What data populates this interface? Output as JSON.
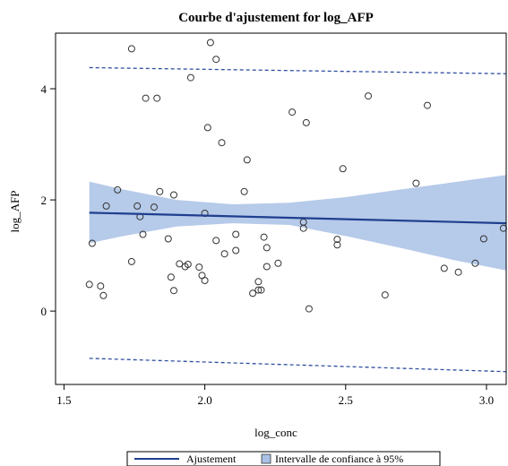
{
  "chart_data": {
    "type": "scatter",
    "title": "Courbe d'ajustement for log_AFP",
    "xlabel": "log_conc",
    "ylabel": "log_AFP",
    "xlim": [
      1.47,
      3.07
    ],
    "ylim": [
      -1.32,
      5.0
    ],
    "x_ticks": [
      1.5,
      2.0,
      2.5,
      3.0
    ],
    "x_tick_labels": [
      "1.5",
      "2.0",
      "2.5",
      "3.0"
    ],
    "y_ticks": [
      0,
      2,
      4
    ],
    "y_tick_labels": [
      "0",
      "2",
      "4"
    ],
    "grid": false,
    "legend_position": "bottom",
    "legend": [
      "Ajustement",
      "Intervalle de confiance à 95%"
    ],
    "colors": {
      "fit_line": "#1f3f8f",
      "ci_band": "#a9c1e5",
      "prediction_line": "#2f4f9f",
      "point_stroke": "#333333"
    },
    "fit_line": {
      "x": [
        1.59,
        3.07
      ],
      "y": [
        1.77,
        1.58
      ]
    },
    "confidence_band": {
      "x": [
        1.59,
        1.7,
        1.9,
        2.1,
        2.3,
        2.5,
        2.7,
        2.9,
        3.07
      ],
      "upper": [
        2.33,
        2.2,
        2.0,
        1.92,
        1.95,
        2.05,
        2.19,
        2.33,
        2.45
      ],
      "lower": [
        1.22,
        1.34,
        1.52,
        1.58,
        1.55,
        1.35,
        1.13,
        0.9,
        0.73
      ]
    },
    "prediction_upper": {
      "x": [
        1.59,
        3.07
      ],
      "y": [
        4.38,
        4.27
      ]
    },
    "prediction_lower": {
      "x": [
        1.59,
        3.07
      ],
      "y": [
        -0.85,
        -1.09
      ]
    },
    "points": [
      {
        "x": 1.59,
        "y": 0.48
      },
      {
        "x": 1.6,
        "y": 1.22
      },
      {
        "x": 1.63,
        "y": 0.45
      },
      {
        "x": 1.64,
        "y": 0.28
      },
      {
        "x": 1.65,
        "y": 1.89
      },
      {
        "x": 1.69,
        "y": 2.18
      },
      {
        "x": 1.74,
        "y": 0.89
      },
      {
        "x": 1.74,
        "y": 4.72
      },
      {
        "x": 1.76,
        "y": 1.89
      },
      {
        "x": 1.77,
        "y": 1.7
      },
      {
        "x": 1.78,
        "y": 1.38
      },
      {
        "x": 1.79,
        "y": 3.83
      },
      {
        "x": 1.82,
        "y": 1.87
      },
      {
        "x": 1.83,
        "y": 3.83
      },
      {
        "x": 1.84,
        "y": 2.15
      },
      {
        "x": 1.87,
        "y": 1.3
      },
      {
        "x": 1.88,
        "y": 0.61
      },
      {
        "x": 1.89,
        "y": 2.09
      },
      {
        "x": 1.89,
        "y": 0.37
      },
      {
        "x": 1.91,
        "y": 0.85
      },
      {
        "x": 1.93,
        "y": 0.8
      },
      {
        "x": 1.94,
        "y": 0.84
      },
      {
        "x": 1.95,
        "y": 4.2
      },
      {
        "x": 1.98,
        "y": 0.79
      },
      {
        "x": 1.99,
        "y": 0.64
      },
      {
        "x": 2.0,
        "y": 1.76
      },
      {
        "x": 2.0,
        "y": 0.55
      },
      {
        "x": 2.01,
        "y": 3.3
      },
      {
        "x": 2.02,
        "y": 4.83
      },
      {
        "x": 2.04,
        "y": 4.53
      },
      {
        "x": 2.04,
        "y": 1.27
      },
      {
        "x": 2.06,
        "y": 3.03
      },
      {
        "x": 2.07,
        "y": 1.03
      },
      {
        "x": 2.11,
        "y": 1.09
      },
      {
        "x": 2.11,
        "y": 1.38
      },
      {
        "x": 2.14,
        "y": 2.15
      },
      {
        "x": 2.15,
        "y": 2.72
      },
      {
        "x": 2.17,
        "y": 0.32
      },
      {
        "x": 2.19,
        "y": 0.53
      },
      {
        "x": 2.19,
        "y": 0.38
      },
      {
        "x": 2.2,
        "y": 0.38
      },
      {
        "x": 2.21,
        "y": 1.33
      },
      {
        "x": 2.22,
        "y": 1.14
      },
      {
        "x": 2.22,
        "y": 0.8
      },
      {
        "x": 2.26,
        "y": 0.86
      },
      {
        "x": 2.31,
        "y": 3.58
      },
      {
        "x": 2.35,
        "y": 1.6
      },
      {
        "x": 2.35,
        "y": 1.49
      },
      {
        "x": 2.36,
        "y": 3.39
      },
      {
        "x": 2.37,
        "y": 0.04
      },
      {
        "x": 2.47,
        "y": 1.29
      },
      {
        "x": 2.47,
        "y": 1.19
      },
      {
        "x": 2.49,
        "y": 2.56
      },
      {
        "x": 2.58,
        "y": 3.87
      },
      {
        "x": 2.64,
        "y": 0.29
      },
      {
        "x": 2.75,
        "y": 2.3
      },
      {
        "x": 2.79,
        "y": 3.7
      },
      {
        "x": 2.85,
        "y": 0.77
      },
      {
        "x": 2.9,
        "y": 0.7
      },
      {
        "x": 2.96,
        "y": 0.86
      },
      {
        "x": 2.99,
        "y": 1.3
      },
      {
        "x": 3.06,
        "y": 1.49
      }
    ]
  }
}
